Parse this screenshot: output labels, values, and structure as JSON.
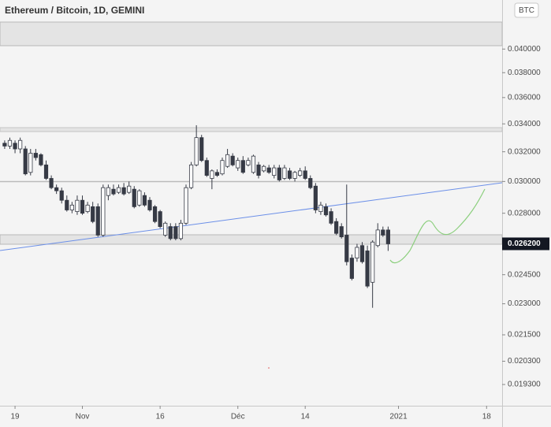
{
  "chart_data": {
    "type": "candlestick",
    "title": "Ethereum / Bitcoin, 1D, GEMINI",
    "currency_badge": "BTC",
    "log_scale": true,
    "up_color": "#ffffff",
    "down_color": "#363a45",
    "x": [
      -2,
      -1,
      0,
      1,
      2,
      3,
      4,
      5,
      6,
      7,
      8,
      9,
      10,
      11,
      12,
      13,
      14,
      15,
      16,
      17,
      18,
      19,
      20,
      21,
      22,
      23,
      24,
      25,
      26,
      27,
      28,
      29,
      30,
      31,
      32,
      33,
      34,
      35,
      36,
      37,
      38,
      39,
      40,
      41,
      42,
      43,
      44,
      45,
      46,
      47,
      48,
      49,
      50,
      51,
      52,
      53,
      54,
      55,
      56,
      57,
      58,
      59,
      60,
      61,
      62,
      63,
      64,
      65,
      66,
      67,
      68,
      69,
      70,
      71,
      72
    ],
    "open": [
      0.0326,
      0.0324,
      0.0326,
      0.0322,
      0.0322,
      0.0306,
      0.0319,
      0.0318,
      0.0311,
      0.0302,
      0.0296,
      0.0294,
      0.0288,
      0.0282,
      0.0281,
      0.0288,
      0.0281,
      0.0284,
      0.0284,
      0.0267,
      0.0291,
      0.0295,
      0.0293,
      0.0296,
      0.0293,
      0.0295,
      0.0285,
      0.0291,
      0.0288,
      0.0284,
      0.0281,
      0.0267,
      0.0272,
      0.0272,
      0.0265,
      0.0274,
      0.0296,
      0.0311,
      0.033,
      0.0314,
      0.0302,
      0.0306,
      0.0305,
      0.031,
      0.0317,
      0.0309,
      0.0314,
      0.0311,
      0.0306,
      0.0311,
      0.0307,
      0.0309,
      0.0304,
      0.0309,
      0.0302,
      0.0307,
      0.0302,
      0.0304,
      0.0307,
      0.0302,
      0.0297,
      0.0281,
      0.0284,
      0.0281,
      0.0275,
      0.0272,
      0.0267,
      0.0254,
      0.0254,
      0.0261,
      0.0258,
      0.0241,
      0.0261,
      0.027,
      0.027
    ],
    "high": [
      0.0328,
      0.033,
      0.0328,
      0.033,
      0.0324,
      0.0322,
      0.0322,
      0.0319,
      0.0314,
      0.0304,
      0.0298,
      0.0296,
      0.0291,
      0.0287,
      0.0291,
      0.0291,
      0.0287,
      0.0287,
      0.0286,
      0.0298,
      0.0298,
      0.0298,
      0.0298,
      0.0299,
      0.03,
      0.0297,
      0.0295,
      0.0293,
      0.029,
      0.0285,
      0.0282,
      0.0275,
      0.0274,
      0.0274,
      0.0276,
      0.0298,
      0.0313,
      0.0339,
      0.0332,
      0.0316,
      0.0308,
      0.0308,
      0.0316,
      0.0322,
      0.0319,
      0.0316,
      0.0317,
      0.0316,
      0.0318,
      0.0313,
      0.0311,
      0.0311,
      0.0311,
      0.0311,
      0.0311,
      0.0309,
      0.0307,
      0.0309,
      0.031,
      0.0304,
      0.0299,
      0.0287,
      0.0286,
      0.0283,
      0.0277,
      0.0274,
      0.0298,
      0.0256,
      0.0262,
      0.0263,
      0.0261,
      0.0264,
      0.0274,
      0.0272,
      0.0272
    ],
    "low": [
      0.0322,
      0.0322,
      0.0319,
      0.0319,
      0.0304,
      0.0304,
      0.0314,
      0.031,
      0.0301,
      0.0295,
      0.0292,
      0.0286,
      0.0281,
      0.028,
      0.0279,
      0.0279,
      0.028,
      0.0274,
      0.0266,
      0.0266,
      0.0288,
      0.0291,
      0.0292,
      0.0291,
      0.0292,
      0.0283,
      0.0284,
      0.0284,
      0.0281,
      0.0274,
      0.0271,
      0.0266,
      0.0264,
      0.0264,
      0.0264,
      0.0273,
      0.0295,
      0.031,
      0.0313,
      0.0303,
      0.0295,
      0.0303,
      0.0304,
      0.0309,
      0.031,
      0.0307,
      0.0305,
      0.031,
      0.0305,
      0.0302,
      0.0306,
      0.0305,
      0.0302,
      0.03,
      0.0301,
      0.0301,
      0.03,
      0.0303,
      0.0301,
      0.0295,
      0.028,
      0.0279,
      0.0278,
      0.0273,
      0.0267,
      0.0265,
      0.025,
      0.0242,
      0.0252,
      0.0251,
      0.0238,
      0.0228,
      0.026,
      0.0266,
      0.0258
    ],
    "close": [
      0.0324,
      0.0328,
      0.0322,
      0.0328,
      0.0305,
      0.0319,
      0.0316,
      0.0311,
      0.0302,
      0.0296,
      0.0294,
      0.0288,
      0.0282,
      0.0285,
      0.0288,
      0.028,
      0.0285,
      0.0275,
      0.0267,
      0.0296,
      0.0296,
      0.0292,
      0.0296,
      0.0292,
      0.0297,
      0.0284,
      0.0294,
      0.0285,
      0.0282,
      0.0275,
      0.0272,
      0.0274,
      0.0265,
      0.0265,
      0.0274,
      0.0296,
      0.0311,
      0.033,
      0.0314,
      0.0304,
      0.0307,
      0.0304,
      0.0314,
      0.0318,
      0.0311,
      0.0314,
      0.0306,
      0.0314,
      0.0317,
      0.0304,
      0.031,
      0.0306,
      0.0309,
      0.0301,
      0.0309,
      0.0302,
      0.0306,
      0.0307,
      0.0302,
      0.0296,
      0.0282,
      0.0285,
      0.0279,
      0.0274,
      0.0268,
      0.0266,
      0.0252,
      0.0243,
      0.026,
      0.0252,
      0.0239,
      0.0263,
      0.027,
      0.0267,
      0.0262
    ],
    "xlim": [
      -2.9,
      94
    ],
    "xticks": [
      {
        "value": 0,
        "label": "19"
      },
      {
        "value": 13,
        "label": "Nov"
      },
      {
        "value": 28,
        "label": "16"
      },
      {
        "value": 43,
        "label": "Déc"
      },
      {
        "value": 56,
        "label": "14"
      },
      {
        "value": 74,
        "label": "2021"
      },
      {
        "value": 91,
        "label": "18"
      }
    ],
    "ylim": [
      0.01843,
      0.0445
    ],
    "yticks": [
      {
        "value": 0.04,
        "label": "0.040000"
      },
      {
        "value": 0.038,
        "label": "0.038000"
      },
      {
        "value": 0.036,
        "label": "0.036000"
      },
      {
        "value": 0.034,
        "label": "0.034000"
      },
      {
        "value": 0.032,
        "label": "0.032000"
      },
      {
        "value": 0.03,
        "label": "0.030000"
      },
      {
        "value": 0.028,
        "label": "0.028000"
      },
      {
        "value": 0.0245,
        "label": "0.024500"
      },
      {
        "value": 0.023,
        "label": "0.023000"
      },
      {
        "value": 0.0215,
        "label": "0.021500"
      },
      {
        "value": 0.0203,
        "label": "0.020300"
      },
      {
        "value": 0.0193,
        "label": "0.019300"
      }
    ],
    "last_price": {
      "value": 0.0262,
      "label": "0.026200"
    }
  }
}
